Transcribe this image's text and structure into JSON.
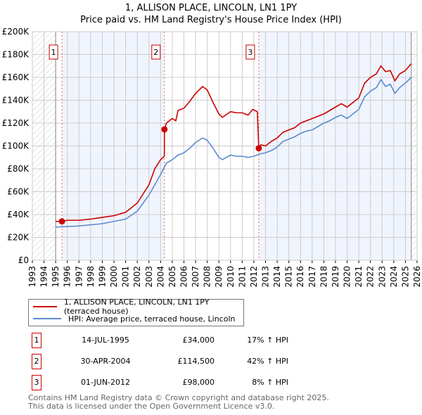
{
  "title": "1, ALLISON PLACE, LINCOLN, LN1 1PY",
  "subtitle": "Price paid vs. HM Land Registry's House Price Index (HPI)",
  "chart_data": {
    "type": "line",
    "xlim": [
      1993,
      2026
    ],
    "ylim": [
      0,
      200000
    ],
    "yticks": [
      {
        "v": 0,
        "label": "£0"
      },
      {
        "v": 20000,
        "label": "£20K"
      },
      {
        "v": 40000,
        "label": "£40K"
      },
      {
        "v": 60000,
        "label": "£60K"
      },
      {
        "v": 80000,
        "label": "£80K"
      },
      {
        "v": 100000,
        "label": "£100K"
      },
      {
        "v": 120000,
        "label": "£120K"
      },
      {
        "v": 140000,
        "label": "£140K"
      },
      {
        "v": 160000,
        "label": "£160K"
      },
      {
        "v": 180000,
        "label": "£180K"
      },
      {
        "v": 200000,
        "label": "£200K"
      }
    ],
    "xticks": [
      "1993",
      "1994",
      "1995",
      "1996",
      "1997",
      "1998",
      "1999",
      "2000",
      "2001",
      "2002",
      "2003",
      "2004",
      "2005",
      "2006",
      "2007",
      "2008",
      "2009",
      "2010",
      "2011",
      "2012",
      "2013",
      "2014",
      "2015",
      "2016",
      "2017",
      "2018",
      "2019",
      "2020",
      "2021",
      "2022",
      "2023",
      "2024",
      "2025",
      "2026"
    ],
    "data_range": [
      1995.0,
      2025.5
    ],
    "series": [
      {
        "name": "1, ALLISON PLACE, LINCOLN, LN1 1PY (terraced house)",
        "color": "#cc0000",
        "x": [
          1995.0,
          1995.5,
          1996,
          1997,
          1998,
          1999,
          2000,
          2001,
          2002,
          2003,
          2003.5,
          2004,
          2004.32,
          2004.33,
          2004.5,
          2005,
          2005.3,
          2005.5,
          2006,
          2006.5,
          2007,
          2007.6,
          2008,
          2008.5,
          2009,
          2009.3,
          2010,
          2010.5,
          2011,
          2011.5,
          2011.9,
          2012.3,
          2012.42,
          2012.6,
          2013,
          2013.5,
          2014,
          2014.5,
          2015,
          2015.5,
          2016,
          2016.5,
          2017,
          2017.5,
          2018,
          2018.5,
          2019,
          2019.5,
          2020,
          2020.5,
          2021,
          2021.5,
          2022,
          2022.5,
          2022.9,
          2023.3,
          2023.7,
          2024.1,
          2024.5,
          2025,
          2025.5
        ],
        "y": [
          34000,
          34000,
          35000,
          35000,
          36000,
          37500,
          39000,
          42000,
          50000,
          66000,
          80000,
          88000,
          91000,
          114500,
          120000,
          124000,
          122000,
          131000,
          133000,
          139000,
          146000,
          152000,
          149000,
          138000,
          128000,
          125000,
          130000,
          129000,
          129000,
          127000,
          132000,
          130000,
          98000,
          101000,
          100000,
          104000,
          107000,
          112000,
          114000,
          116000,
          120000,
          122000,
          124000,
          126000,
          128000,
          131000,
          134000,
          137000,
          134000,
          138000,
          142000,
          155000,
          160000,
          163000,
          170000,
          165000,
          166000,
          157000,
          163000,
          166000,
          172000
        ]
      },
      {
        "name": "HPI: Average price, terraced house, Lincoln",
        "color": "#5b8ccf",
        "x": [
          1995.0,
          1996,
          1997,
          1998,
          1999,
          2000,
          2001,
          2002,
          2003,
          2004,
          2004.5,
          2005,
          2005.5,
          2006,
          2006.5,
          2007,
          2007.6,
          2008,
          2008.5,
          2009,
          2009.3,
          2010,
          2010.5,
          2011,
          2011.5,
          2012,
          2012.5,
          2013,
          2013.5,
          2014,
          2014.5,
          2015,
          2015.5,
          2016,
          2016.5,
          2017,
          2017.5,
          2018,
          2018.5,
          2019,
          2019.5,
          2020,
          2020.5,
          2021,
          2021.5,
          2022,
          2022.5,
          2022.9,
          2023.3,
          2023.7,
          2024.1,
          2024.5,
          2025,
          2025.5
        ],
        "y": [
          29000,
          29500,
          30000,
          31000,
          32000,
          34000,
          36000,
          43000,
          57000,
          75000,
          85000,
          88000,
          92000,
          94000,
          98000,
          103000,
          107000,
          105000,
          98000,
          90000,
          88000,
          92000,
          91000,
          91000,
          90000,
          91000,
          93000,
          94000,
          96000,
          99000,
          104000,
          106000,
          108000,
          111000,
          113000,
          114000,
          117000,
          120000,
          122000,
          125000,
          127000,
          124000,
          128000,
          132000,
          143000,
          148000,
          151000,
          158000,
          152000,
          154000,
          146000,
          151000,
          155000,
          160000
        ]
      }
    ],
    "sales": [
      {
        "label": "1",
        "x": 1995.54,
        "y": 34000
      },
      {
        "label": "2",
        "x": 2004.33,
        "y": 114500
      },
      {
        "label": "3",
        "x": 2012.42,
        "y": 98000
      }
    ]
  },
  "legend": {
    "red": "1, ALLISON PLACE, LINCOLN, LN1 1PY (terraced house)",
    "blue": "HPI: Average price, terraced house, Lincoln"
  },
  "table": [
    {
      "num": "1",
      "date": "14-JUL-1995",
      "price": "£34,000",
      "hpi": "17% ↑ HPI"
    },
    {
      "num": "2",
      "date": "30-APR-2004",
      "price": "£114,500",
      "hpi": "42% ↑ HPI"
    },
    {
      "num": "3",
      "date": "01-JUN-2012",
      "price": "£98,000",
      "hpi": "8% ↑ HPI"
    }
  ],
  "footer": {
    "line1": "Contains HM Land Registry data © Crown copyright and database right 2025.",
    "line2": "This data is licensed under the Open Government Licence v3.0."
  }
}
